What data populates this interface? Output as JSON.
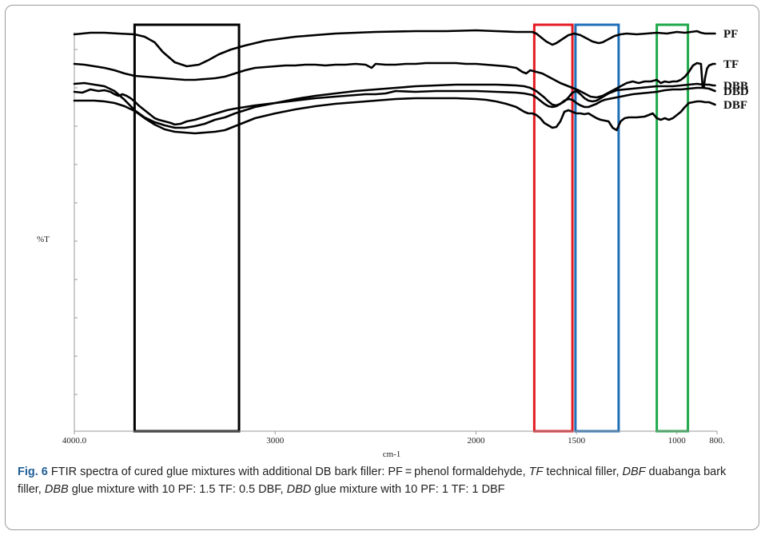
{
  "chart_data": {
    "type": "line",
    "title": "",
    "xlabel": "cm-1",
    "ylabel": "%T",
    "xlim": [
      4000,
      800
    ],
    "x_ticks": [
      4000,
      3000,
      2000,
      1500,
      1000,
      800
    ],
    "x_tick_labels": [
      "4000.0",
      "3000",
      "2000",
      "1500",
      "1000",
      "800."
    ],
    "series": [
      {
        "name": "PF",
        "x": [
          4000,
          3920,
          3850,
          3780,
          3700,
          3650,
          3600,
          3560,
          3500,
          3440,
          3380,
          3330,
          3280,
          3220,
          3150,
          3050,
          2900,
          2700,
          2500,
          2300,
          2150,
          2000,
          1900,
          1800,
          1750,
          1720,
          1700,
          1680,
          1650,
          1620,
          1600,
          1570,
          1540,
          1510,
          1480,
          1450,
          1420,
          1390,
          1370,
          1340,
          1310,
          1280,
          1250,
          1200,
          1150,
          1100,
          1050,
          1000,
          960,
          930,
          900,
          880,
          860,
          840,
          810
        ],
        "y": [
          0.13,
          0.11,
          0.11,
          0.12,
          0.13,
          0.16,
          0.23,
          0.35,
          0.48,
          0.53,
          0.51,
          0.45,
          0.38,
          0.32,
          0.27,
          0.21,
          0.16,
          0.12,
          0.1,
          0.09,
          0.09,
          0.08,
          0.09,
          0.1,
          0.1,
          0.1,
          0.12,
          0.16,
          0.22,
          0.26,
          0.24,
          0.19,
          0.14,
          0.12,
          0.14,
          0.18,
          0.22,
          0.24,
          0.23,
          0.19,
          0.15,
          0.13,
          0.12,
          0.13,
          0.12,
          0.11,
          0.12,
          0.1,
          0.11,
          0.1,
          0.09,
          0.11,
          0.12,
          0.12,
          0.12
        ]
      },
      {
        "name": "TF",
        "x": [
          4000,
          3950,
          3900,
          3850,
          3800,
          3750,
          3700,
          3650,
          3600,
          3550,
          3500,
          3450,
          3400,
          3350,
          3300,
          3250,
          3200,
          3150,
          3100,
          3050,
          3000,
          2950,
          2900,
          2850,
          2800,
          2750,
          2700,
          2650,
          2600,
          2550,
          2520,
          2500,
          2450,
          2400,
          2350,
          2300,
          2250,
          2200,
          2150,
          2100,
          2050,
          2000,
          1950,
          1900,
          1850,
          1800,
          1770,
          1750,
          1730,
          1700,
          1670,
          1640,
          1610,
          1580,
          1550,
          1520,
          1490,
          1460,
          1430,
          1400,
          1370,
          1340,
          1310,
          1280,
          1250,
          1220,
          1190,
          1160,
          1130,
          1100,
          1080,
          1060,
          1040,
          1020,
          1000,
          980,
          960,
          940,
          920,
          900,
          880,
          872,
          866,
          860,
          850,
          840,
          830,
          820,
          810
        ],
        "y": [
          0.5,
          0.51,
          0.53,
          0.55,
          0.58,
          0.62,
          0.65,
          0.66,
          0.67,
          0.68,
          0.69,
          0.7,
          0.7,
          0.69,
          0.68,
          0.66,
          0.62,
          0.58,
          0.55,
          0.54,
          0.53,
          0.52,
          0.52,
          0.51,
          0.51,
          0.52,
          0.51,
          0.51,
          0.5,
          0.51,
          0.55,
          0.5,
          0.51,
          0.51,
          0.5,
          0.5,
          0.49,
          0.49,
          0.49,
          0.49,
          0.5,
          0.5,
          0.51,
          0.52,
          0.53,
          0.55,
          0.6,
          0.62,
          0.58,
          0.6,
          0.62,
          0.66,
          0.7,
          0.74,
          0.77,
          0.8,
          0.83,
          0.87,
          0.91,
          0.92,
          0.9,
          0.86,
          0.82,
          0.78,
          0.74,
          0.72,
          0.74,
          0.72,
          0.72,
          0.7,
          0.74,
          0.72,
          0.73,
          0.72,
          0.72,
          0.7,
          0.66,
          0.6,
          0.52,
          0.49,
          0.5,
          0.78,
          0.8,
          0.68,
          0.56,
          0.52,
          0.51,
          0.5,
          0.5
        ]
      },
      {
        "name": "DBF",
        "x": [
          4000,
          3950,
          3900,
          3850,
          3800,
          3750,
          3700,
          3650,
          3600,
          3550,
          3500,
          3450,
          3400,
          3350,
          3300,
          3250,
          3200,
          3150,
          3100,
          3000,
          2900,
          2800,
          2700,
          2600,
          2500,
          2400,
          2300,
          2200,
          2100,
          2000,
          1950,
          1900,
          1850,
          1800,
          1760,
          1740,
          1720,
          1700,
          1680,
          1660,
          1640,
          1620,
          1600,
          1580,
          1560,
          1540,
          1520,
          1500,
          1480,
          1460,
          1440,
          1420,
          1400,
          1380,
          1360,
          1340,
          1320,
          1300,
          1280,
          1260,
          1240,
          1200,
          1160,
          1120,
          1100,
          1080,
          1060,
          1040,
          1020,
          1000,
          980,
          960,
          940,
          920,
          900,
          880,
          860,
          840,
          820,
          810
        ],
        "y": [
          0.96,
          0.96,
          0.96,
          0.97,
          0.99,
          1.03,
          1.09,
          1.18,
          1.26,
          1.32,
          1.35,
          1.36,
          1.37,
          1.36,
          1.35,
          1.33,
          1.28,
          1.23,
          1.18,
          1.12,
          1.07,
          1.03,
          1.0,
          0.98,
          0.96,
          0.94,
          0.93,
          0.93,
          0.93,
          0.94,
          0.95,
          0.97,
          1.0,
          1.04,
          1.1,
          1.12,
          1.12,
          1.14,
          1.18,
          1.24,
          1.27,
          1.3,
          1.29,
          1.22,
          1.1,
          1.08,
          1.1,
          1.12,
          1.12,
          1.13,
          1.12,
          1.15,
          1.18,
          1.2,
          1.21,
          1.22,
          1.3,
          1.33,
          1.22,
          1.18,
          1.17,
          1.17,
          1.16,
          1.12,
          1.18,
          1.2,
          1.18,
          1.2,
          1.18,
          1.14,
          1.1,
          1.04,
          0.99,
          0.98,
          0.97,
          0.97,
          0.98,
          0.98,
          1.0,
          1.01
        ]
      },
      {
        "name": "DBB",
        "x": [
          4000,
          3950,
          3900,
          3850,
          3800,
          3750,
          3700,
          3650,
          3600,
          3550,
          3500,
          3450,
          3400,
          3350,
          3300,
          3250,
          3200,
          3150,
          3100,
          3000,
          2900,
          2800,
          2700,
          2600,
          2500,
          2400,
          2300,
          2200,
          2100,
          2000,
          1900,
          1800,
          1760,
          1730,
          1700,
          1680,
          1660,
          1640,
          1620,
          1600,
          1580,
          1560,
          1540,
          1520,
          1500,
          1480,
          1460,
          1440,
          1420,
          1400,
          1380,
          1360,
          1340,
          1320,
          1300,
          1260,
          1220,
          1180,
          1140,
          1100,
          1060,
          1020,
          980,
          940,
          900,
          870,
          840,
          820,
          810
        ],
        "y": [
          0.75,
          0.74,
          0.76,
          0.78,
          0.84,
          0.95,
          1.08,
          1.17,
          1.23,
          1.27,
          1.3,
          1.3,
          1.28,
          1.25,
          1.2,
          1.17,
          1.12,
          1.08,
          1.04,
          0.99,
          0.94,
          0.9,
          0.87,
          0.84,
          0.82,
          0.8,
          0.78,
          0.77,
          0.76,
          0.76,
          0.76,
          0.77,
          0.78,
          0.8,
          0.84,
          0.88,
          0.92,
          0.97,
          1.01,
          1.02,
          1.0,
          0.97,
          0.92,
          0.86,
          0.84,
          0.88,
          0.93,
          0.96,
          0.97,
          0.96,
          0.93,
          0.9,
          0.87,
          0.85,
          0.83,
          0.82,
          0.81,
          0.8,
          0.79,
          0.78,
          0.78,
          0.78,
          0.77,
          0.76,
          0.75,
          0.76,
          0.76,
          0.77,
          0.77
        ]
      },
      {
        "name": "DBD",
        "x": [
          4000,
          3960,
          3920,
          3880,
          3850,
          3820,
          3800,
          3780,
          3760,
          3740,
          3720,
          3700,
          3680,
          3650,
          3620,
          3600,
          3580,
          3550,
          3520,
          3500,
          3470,
          3440,
          3400,
          3360,
          3320,
          3280,
          3240,
          3200,
          3150,
          3100,
          3000,
          2900,
          2800,
          2700,
          2600,
          2550,
          2500,
          2450,
          2400,
          2300,
          2200,
          2100,
          2000,
          1900,
          1800,
          1760,
          1720,
          1700,
          1680,
          1660,
          1640,
          1620,
          1600,
          1580,
          1560,
          1540,
          1520,
          1500,
          1480,
          1460,
          1440,
          1420,
          1400,
          1380,
          1360,
          1340,
          1300,
          1260,
          1220,
          1180,
          1140,
          1100,
          1060,
          1020,
          980,
          940,
          900,
          870,
          840,
          820,
          810
        ],
        "y": [
          0.85,
          0.86,
          0.82,
          0.84,
          0.83,
          0.85,
          0.88,
          0.9,
          0.88,
          0.9,
          0.93,
          0.97,
          1.02,
          1.08,
          1.14,
          1.18,
          1.2,
          1.22,
          1.24,
          1.26,
          1.25,
          1.22,
          1.2,
          1.17,
          1.14,
          1.11,
          1.08,
          1.06,
          1.04,
          1.02,
          0.99,
          0.96,
          0.93,
          0.91,
          0.89,
          0.88,
          0.88,
          0.87,
          0.84,
          0.85,
          0.84,
          0.84,
          0.84,
          0.85,
          0.86,
          0.87,
          0.89,
          0.92,
          0.96,
          1.0,
          1.03,
          1.04,
          1.03,
          1.0,
          0.96,
          0.94,
          0.95,
          0.99,
          1.02,
          1.04,
          1.04,
          1.02,
          1.0,
          0.97,
          0.95,
          0.94,
          0.92,
          0.9,
          0.88,
          0.87,
          0.86,
          0.85,
          0.83,
          0.82,
          0.82,
          0.81,
          0.8,
          0.8,
          0.81,
          0.83,
          0.84
        ]
      }
    ],
    "highlight_boxes": [
      {
        "color": "#000000",
        "x_range": [
          3700,
          3180
        ]
      },
      {
        "color": "#e31b23",
        "x_range": [
          1710,
          1520
        ]
      },
      {
        "color": "#1f6fb8",
        "x_range": [
          1505,
          1290
        ]
      },
      {
        "color": "#1fa84a",
        "x_range": [
          1100,
          945
        ]
      }
    ],
    "grid": false,
    "legend": "none"
  },
  "caption": {
    "fig_label": "Fig. 6",
    "part1": " FTIR spectra of cured glue mixtures with additional DB bark filler: PF = phenol formaldehyde, ",
    "tf_abbr": "TF",
    "part2": " technical filler, ",
    "dbf_abbr": "DBF",
    "part3": " duabanga bark filler, ",
    "dbb_abbr": "DBB",
    "part4": " glue mixture with 10 PF: 1.5 TF: 0.5 DBF, ",
    "dbd_abbr": "DBD",
    "part5": " glue mixture with 10 PF: 1 TF: 1 DBF"
  }
}
